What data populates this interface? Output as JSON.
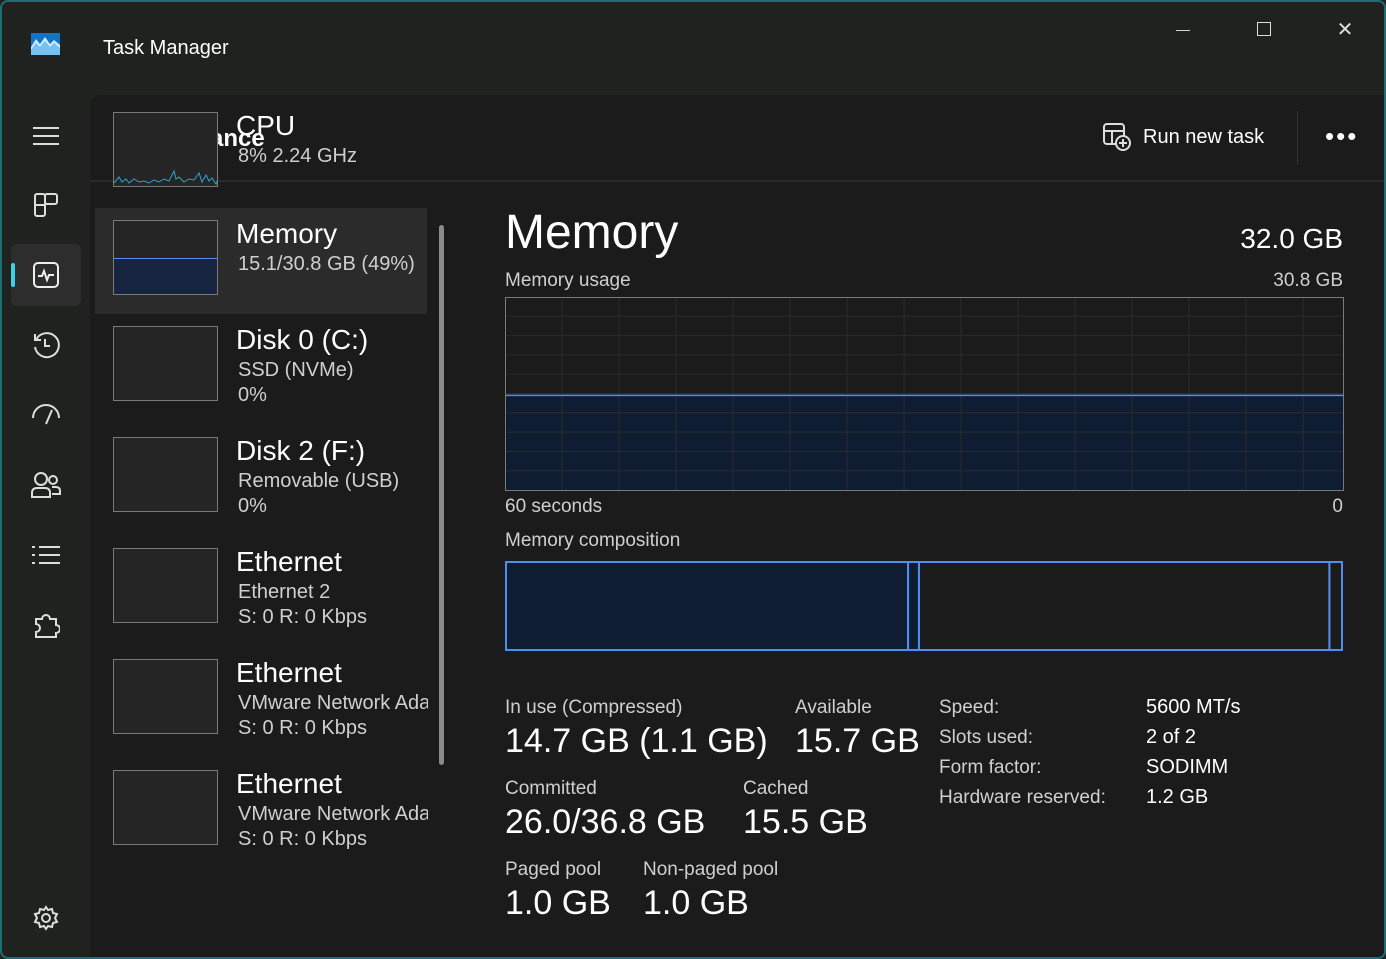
{
  "window": {
    "title": "Task Manager",
    "minimize": "—",
    "maximize": "☐",
    "close": "✕"
  },
  "nav": {
    "items": [
      "menu-icon",
      "processes-icon",
      "performance-icon",
      "app-history-icon",
      "startup-apps-icon",
      "users-icon",
      "details-icon",
      "services-icon",
      "settings-icon"
    ],
    "active": "performance"
  },
  "header": {
    "title": "Performance",
    "run_new_task": "Run new task",
    "more": "•••"
  },
  "sidebar": {
    "items": [
      {
        "name": "CPU",
        "lines": [
          "8%  2.24 GHz"
        ]
      },
      {
        "name": "Memory",
        "lines": [
          "15.1/30.8 GB (49%)"
        ]
      },
      {
        "name": "Disk 0 (C:)",
        "lines": [
          "SSD (NVMe)",
          "0%"
        ]
      },
      {
        "name": "Disk 2 (F:)",
        "lines": [
          "Removable (USB)",
          "0%"
        ]
      },
      {
        "name": "Ethernet",
        "lines": [
          "Ethernet 2",
          "S: 0 R: 0 Kbps"
        ]
      },
      {
        "name": "Ethernet",
        "lines": [
          "VMware Network Adapter",
          "S: 0 R: 0 Kbps"
        ]
      },
      {
        "name": "Ethernet",
        "lines": [
          "VMware Network Adapter",
          "S: 0 R: 0 Kbps"
        ]
      }
    ]
  },
  "memory": {
    "title": "Memory",
    "total": "32.0 GB",
    "usage_label": "Memory usage",
    "usage_max": "30.8 GB",
    "usage_percent": 49,
    "x_left": "60 seconds",
    "x_right": "0",
    "composition_label": "Memory composition",
    "composition_fractions": {
      "in_use": 0.48,
      "modified": 0.013,
      "standby": 0.49,
      "free": 0.015
    },
    "stats": {
      "in_use_label": "In use (Compressed)",
      "in_use": "14.7 GB (1.1 GB)",
      "available_label": "Available",
      "available": "15.7 GB",
      "committed_label": "Committed",
      "committed": "26.0/36.8 GB",
      "cached_label": "Cached",
      "cached": "15.5 GB",
      "paged_label": "Paged pool",
      "paged": "1.0 GB",
      "nonpaged_label": "Non-paged pool",
      "nonpaged": "1.0 GB"
    },
    "specs": [
      {
        "k": "Speed:",
        "v": "5600 MT/s"
      },
      {
        "k": "Slots used:",
        "v": "2 of 2"
      },
      {
        "k": "Form factor:",
        "v": "SODIMM"
      },
      {
        "k": "Hardware reserved:",
        "v": "1.2 GB"
      }
    ]
  },
  "colors": {
    "accent": "#35d4e8",
    "memory_line": "#4f8ff0",
    "memory_fill": "#0f1d33",
    "cpu_line": "#2fa3d0"
  }
}
